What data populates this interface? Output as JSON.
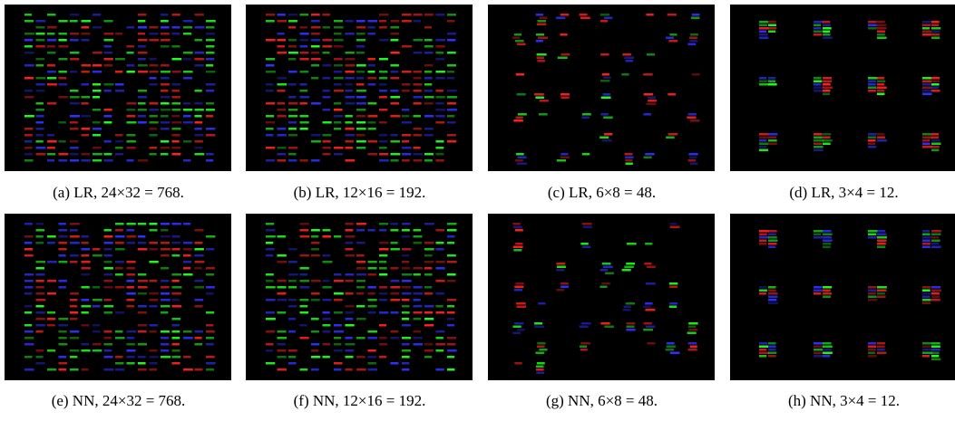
{
  "figure": {
    "panels": [
      {
        "caption": "(a) LR, 24×32 = 768."
      },
      {
        "caption": "(b) LR, 12×16 = 192."
      },
      {
        "caption": "(c) LR, 6×8 = 48."
      },
      {
        "caption": "(d) LR, 3×4 = 12."
      },
      {
        "caption": "(e) NN, 24×32 = 768."
      },
      {
        "caption": "(f) NN, 12×16 = 192."
      },
      {
        "caption": "(g) NN, 6×8 = 48."
      },
      {
        "caption": "(h) NN, 3×4 = 12."
      }
    ]
  }
}
